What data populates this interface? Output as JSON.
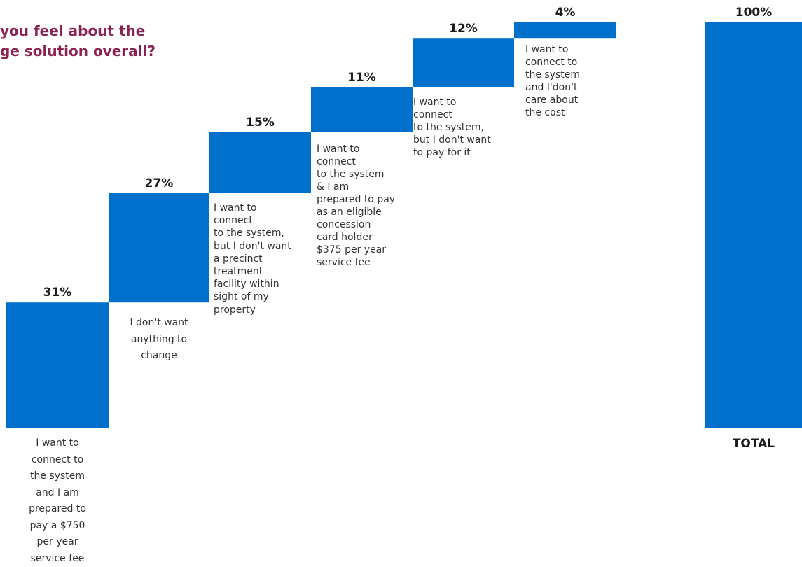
{
  "title": {
    "line1": "you feel about the",
    "line2": "ge solution overall?"
  },
  "colors": {
    "bar": "#0070cc",
    "title": "#8b2252",
    "label": "#333333"
  },
  "chart_data": {
    "type": "bar",
    "variant": "waterfall",
    "ylim": [
      0,
      100
    ],
    "categories": [
      "I want to\nconnect to\nthe system\nand I am\nprepared to\npay a $750\nper year\nservice fee",
      "I don't want\nanything to\nchange",
      "I want to\nconnect\nto the system,\nbut I don't want\na precinct\ntreatment\nfacility within\nsight  of my\nproperty",
      "I want to\nconnect\n to the system\n  &  I am\nprepared to pay\nas an  eligible\nconcession\ncard holder\n$375 per year\nservice fee",
      "I want to\nconnect\nto the system,\nbut I don't want\nto pay for it",
      "I want to\nconnect to\n the system\n and I'don't\ncare about\n the cost",
      "TOTAL"
    ],
    "values": [
      31,
      27,
      15,
      11,
      12,
      4,
      100
    ],
    "value_labels": [
      "31%",
      "27%",
      "15%",
      "11%",
      "12%",
      "4%",
      "100%"
    ]
  }
}
